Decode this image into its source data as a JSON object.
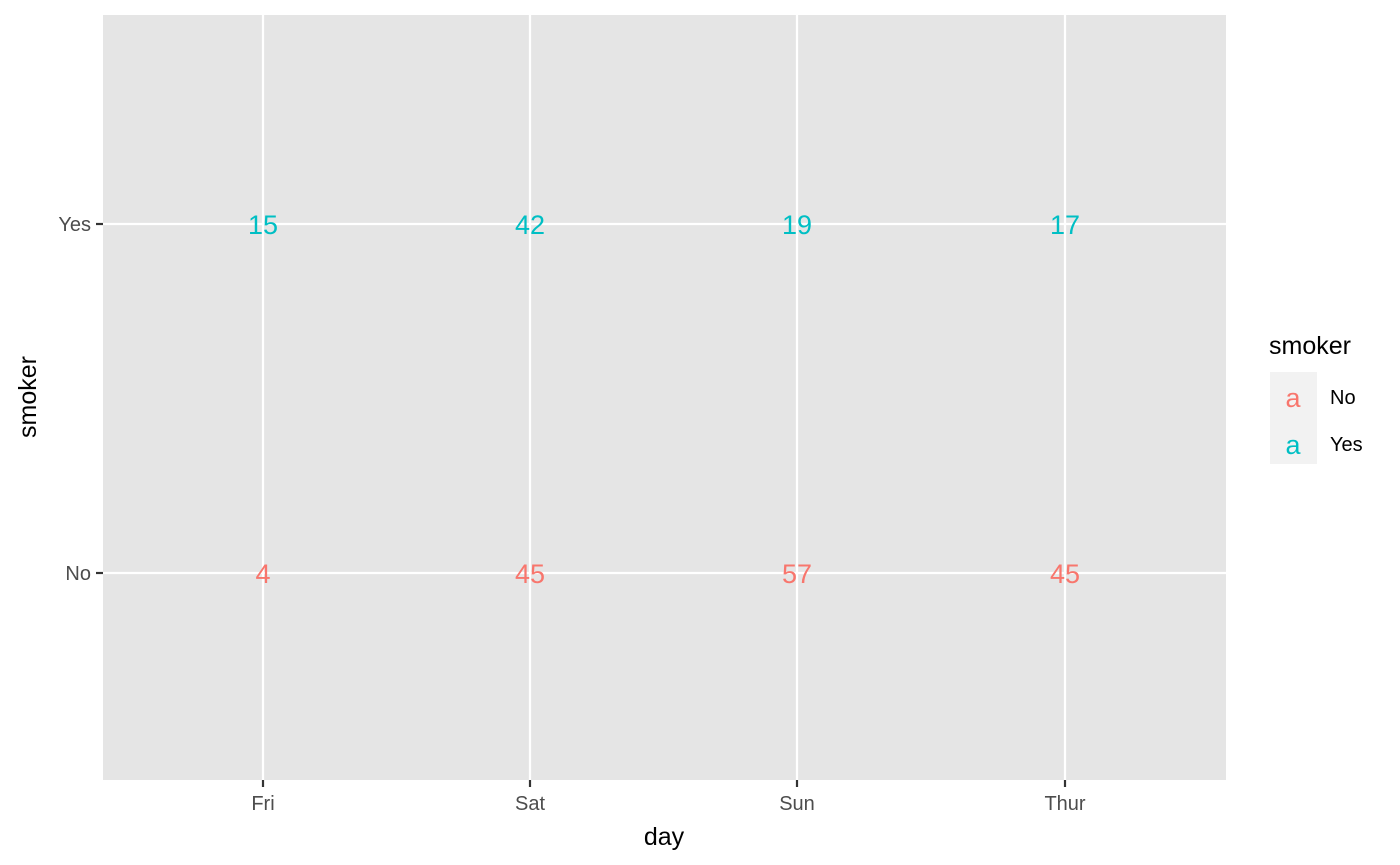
{
  "chart_data": {
    "type": "table",
    "title": "",
    "xlabel": "day",
    "ylabel": "smoker",
    "x_categories": [
      "Fri",
      "Sat",
      "Sun",
      "Thur"
    ],
    "y_categories": [
      "No",
      "Yes"
    ],
    "series": [
      {
        "name": "No",
        "color": "#F8766D",
        "values": [
          4,
          45,
          57,
          45
        ]
      },
      {
        "name": "Yes",
        "color": "#00BFC4",
        "values": [
          15,
          42,
          19,
          17
        ]
      }
    ],
    "legend": {
      "title": "smoker",
      "position": "right",
      "key_glyph": "a"
    },
    "grid": true,
    "panel_background": "#E5E5E5",
    "grid_color": "#FFFFFF"
  }
}
